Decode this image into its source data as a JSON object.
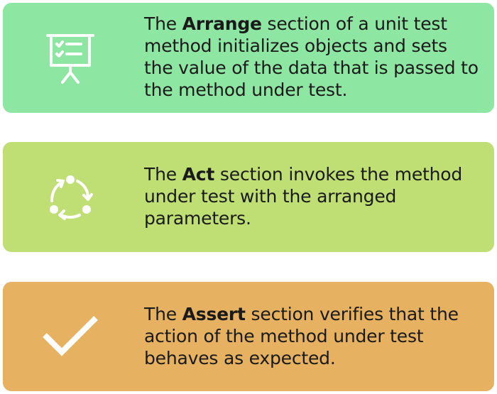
{
  "cards": [
    {
      "prefix": "The ",
      "keyword": "Arrange",
      "text": " section of a unit test method initializes objects and sets the value of the data that is passed to the method under test.",
      "icon": "presentation-board-icon",
      "color": "#8ee6a3"
    },
    {
      "prefix": "The ",
      "keyword": "Act",
      "text": " section invokes the method under test with the arranged parameters.",
      "icon": "cycle-arrows-icon",
      "color": "#bfdf74"
    },
    {
      "prefix": "The ",
      "keyword": "Assert",
      "text": " section verifies that the action of the method under test behaves as expected.",
      "icon": "checkmark-icon",
      "color": "#e6b160"
    }
  ]
}
